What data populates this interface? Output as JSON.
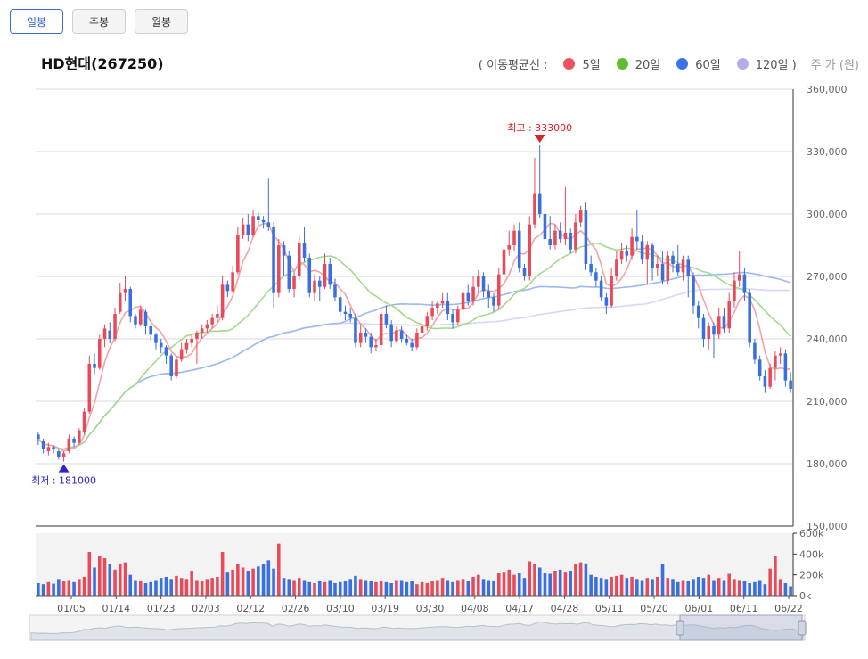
{
  "tabs": [
    {
      "label": "일봉",
      "active": true
    },
    {
      "label": "주봉",
      "active": false
    },
    {
      "label": "월봉",
      "active": false
    }
  ],
  "stock_title": "HD현대(267250)",
  "legend": {
    "prefix": "( 이동평균선 :",
    "items": [
      {
        "label": "5일",
        "color": "#f0525e"
      },
      {
        "label": "20일",
        "color": "#5cc02e"
      },
      {
        "label": "60일",
        "color": "#3b73e6"
      },
      {
        "label": "120일 )",
        "color": "#b3aee8"
      }
    ],
    "unit": "주 가 (원)"
  },
  "colors": {
    "up": "#e84a5a",
    "down": "#3a6fe0",
    "ma5": "#f2a3a8",
    "ma20": "#a3d98a",
    "ma60": "#9bbaf0",
    "ma120": "#d9d6f5",
    "high_marker": "#d22",
    "low_marker": "#2a24c8"
  },
  "chart_data": {
    "type": "candlestick",
    "price_axis": {
      "min": 150000,
      "max": 360000,
      "ticks": [
        "360,000",
        "330,000",
        "300,000",
        "270,000",
        "240,000",
        "210,000",
        "180,000",
        "150,000"
      ]
    },
    "volume_axis": {
      "min": 0,
      "max": 600000,
      "ticks": [
        "600k",
        "400k",
        "200k",
        "0k"
      ]
    },
    "x_ticks": [
      "01/05",
      "01/14",
      "01/23",
      "02/03",
      "02/12",
      "02/26",
      "03/10",
      "03/19",
      "03/30",
      "04/08",
      "04/17",
      "04/28",
      "05/11",
      "05/20",
      "06/01",
      "06/11",
      "06/22"
    ],
    "high_label": "최고 : 333000",
    "low_label": "최저 : 181000",
    "candles": [
      [
        194000,
        192000,
        195000,
        189000,
        120000
      ],
      [
        191000,
        187000,
        192000,
        185000,
        110000
      ],
      [
        186000,
        188000,
        190000,
        184000,
        130000
      ],
      [
        188000,
        187000,
        189000,
        185000,
        115000
      ],
      [
        186000,
        183000,
        187000,
        182000,
        160000
      ],
      [
        183000,
        185000,
        186000,
        181000,
        140000
      ],
      [
        186000,
        192000,
        194000,
        185000,
        150000
      ],
      [
        192000,
        190000,
        193000,
        188000,
        130000
      ],
      [
        190000,
        196000,
        197000,
        189000,
        160000
      ],
      [
        195000,
        205000,
        207000,
        194000,
        180000
      ],
      [
        205000,
        228000,
        232000,
        204000,
        420000
      ],
      [
        228000,
        226000,
        233000,
        223000,
        270000
      ],
      [
        226000,
        240000,
        242000,
        225000,
        380000
      ],
      [
        240000,
        245000,
        247000,
        236000,
        360000
      ],
      [
        244000,
        240000,
        248000,
        238000,
        300000
      ],
      [
        240000,
        252000,
        255000,
        239000,
        250000
      ],
      [
        253000,
        262000,
        267000,
        252000,
        310000
      ],
      [
        262000,
        264000,
        270000,
        258000,
        320000
      ],
      [
        264000,
        251000,
        265000,
        248000,
        200000
      ],
      [
        251000,
        247000,
        252000,
        245000,
        150000
      ],
      [
        247000,
        254000,
        256000,
        246000,
        140000
      ],
      [
        253000,
        246000,
        254000,
        242000,
        120000
      ],
      [
        246000,
        242000,
        247000,
        239000,
        130000
      ],
      [
        242000,
        238000,
        243000,
        235000,
        150000
      ],
      [
        238000,
        236000,
        240000,
        233000,
        170000
      ],
      [
        236000,
        232000,
        237000,
        228000,
        180000
      ],
      [
        232000,
        222000,
        233000,
        220000,
        160000
      ],
      [
        222000,
        230000,
        232000,
        221000,
        190000
      ],
      [
        230000,
        235000,
        238000,
        229000,
        170000
      ],
      [
        235000,
        238000,
        240000,
        233000,
        160000
      ],
      [
        238000,
        240000,
        242000,
        236000,
        240000
      ],
      [
        240000,
        243000,
        244000,
        228000,
        150000
      ],
      [
        243000,
        245000,
        247000,
        240000,
        140000
      ],
      [
        245000,
        247000,
        249000,
        243000,
        160000
      ],
      [
        247000,
        250000,
        252000,
        245000,
        170000
      ],
      [
        250000,
        252000,
        256000,
        248000,
        180000
      ],
      [
        250000,
        266000,
        270000,
        249000,
        420000
      ],
      [
        266000,
        263000,
        268000,
        260000,
        230000
      ],
      [
        263000,
        272000,
        275000,
        262000,
        250000
      ],
      [
        272000,
        290000,
        294000,
        271000,
        300000
      ],
      [
        290000,
        295000,
        298000,
        288000,
        270000
      ],
      [
        295000,
        290000,
        300000,
        287000,
        240000
      ],
      [
        290000,
        299000,
        302000,
        289000,
        260000
      ],
      [
        299000,
        297000,
        301000,
        295000,
        280000
      ],
      [
        297000,
        296000,
        299000,
        293000,
        300000
      ],
      [
        296000,
        294000,
        317000,
        292000,
        340000
      ],
      [
        294000,
        262000,
        296000,
        255000,
        260000
      ],
      [
        262000,
        285000,
        288000,
        260000,
        500000
      ],
      [
        285000,
        280000,
        287000,
        270000,
        170000
      ],
      [
        280000,
        264000,
        282000,
        262000,
        160000
      ],
      [
        264000,
        270000,
        272000,
        260000,
        150000
      ],
      [
        270000,
        286000,
        290000,
        268000,
        170000
      ],
      [
        286000,
        279000,
        294000,
        277000,
        150000
      ],
      [
        279000,
        262000,
        281000,
        260000,
        130000
      ],
      [
        262000,
        268000,
        271000,
        258000,
        120000
      ],
      [
        268000,
        265000,
        270000,
        258000,
        140000
      ],
      [
        265000,
        276000,
        281000,
        264000,
        130000
      ],
      [
        276000,
        266000,
        279000,
        264000,
        150000
      ],
      [
        266000,
        260000,
        269000,
        258000,
        120000
      ],
      [
        260000,
        253000,
        262000,
        251000,
        130000
      ],
      [
        253000,
        252000,
        256000,
        249000,
        140000
      ],
      [
        252000,
        250000,
        255000,
        248000,
        160000
      ],
      [
        250000,
        238000,
        252000,
        236000,
        190000
      ],
      [
        238000,
        243000,
        247000,
        236000,
        160000
      ],
      [
        243000,
        241000,
        245000,
        238000,
        150000
      ],
      [
        241000,
        236000,
        243000,
        233000,
        140000
      ],
      [
        236000,
        237000,
        240000,
        234000,
        130000
      ],
      [
        237000,
        252000,
        254000,
        235000,
        140000
      ],
      [
        252000,
        247000,
        256000,
        245000,
        130000
      ],
      [
        247000,
        239000,
        249000,
        236000,
        120000
      ],
      [
        239000,
        244000,
        246000,
        238000,
        150000
      ],
      [
        244000,
        240000,
        246000,
        238000,
        150000
      ],
      [
        240000,
        238000,
        242000,
        237000,
        130000
      ],
      [
        238000,
        236000,
        240000,
        234000,
        140000
      ],
      [
        236000,
        243000,
        245000,
        235000,
        110000
      ],
      [
        243000,
        246000,
        248000,
        241000,
        130000
      ],
      [
        246000,
        251000,
        253000,
        244000,
        120000
      ],
      [
        251000,
        255000,
        258000,
        249000,
        140000
      ],
      [
        255000,
        257000,
        258000,
        252000,
        150000
      ],
      [
        257000,
        258000,
        262000,
        255000,
        170000
      ],
      [
        258000,
        252000,
        262000,
        249000,
        150000
      ],
      [
        252000,
        248000,
        254000,
        245000,
        130000
      ],
      [
        248000,
        254000,
        256000,
        247000,
        150000
      ],
      [
        254000,
        262000,
        265000,
        251000,
        160000
      ],
      [
        262000,
        258000,
        266000,
        256000,
        140000
      ],
      [
        258000,
        265000,
        270000,
        256000,
        180000
      ],
      [
        265000,
        270000,
        273000,
        262000,
        200000
      ],
      [
        270000,
        263000,
        272000,
        260000,
        160000
      ],
      [
        263000,
        260000,
        266000,
        255000,
        150000
      ],
      [
        260000,
        256000,
        262000,
        253000,
        140000
      ],
      [
        256000,
        271000,
        274000,
        254000,
        220000
      ],
      [
        271000,
        283000,
        287000,
        269000,
        230000
      ],
      [
        283000,
        285000,
        292000,
        280000,
        250000
      ],
      [
        285000,
        292000,
        295000,
        282000,
        200000
      ],
      [
        292000,
        274000,
        296000,
        272000,
        220000
      ],
      [
        274000,
        270000,
        276000,
        268000,
        170000
      ],
      [
        270000,
        295000,
        299000,
        268000,
        330000
      ],
      [
        295000,
        310000,
        327000,
        293000,
        300000
      ],
      [
        310000,
        300000,
        333000,
        298000,
        270000
      ],
      [
        300000,
        288000,
        303000,
        285000,
        220000
      ],
      [
        288000,
        285000,
        299000,
        283000,
        210000
      ],
      [
        285000,
        292000,
        295000,
        283000,
        240000
      ],
      [
        292000,
        288000,
        296000,
        286000,
        250000
      ],
      [
        288000,
        291000,
        313000,
        285000,
        230000
      ],
      [
        291000,
        283000,
        293000,
        281000,
        240000
      ],
      [
        283000,
        296000,
        300000,
        281000,
        300000
      ],
      [
        296000,
        302000,
        304000,
        294000,
        320000
      ],
      [
        302000,
        276000,
        306000,
        273000,
        310000
      ],
      [
        276000,
        272000,
        280000,
        270000,
        200000
      ],
      [
        272000,
        268000,
        274000,
        265000,
        180000
      ],
      [
        268000,
        260000,
        270000,
        258000,
        170000
      ],
      [
        260000,
        256000,
        262000,
        252000,
        160000
      ],
      [
        256000,
        270000,
        274000,
        255000,
        180000
      ],
      [
        270000,
        278000,
        282000,
        268000,
        190000
      ],
      [
        278000,
        282000,
        286000,
        276000,
        200000
      ],
      [
        282000,
        280000,
        285000,
        277000,
        170000
      ],
      [
        280000,
        289000,
        293000,
        278000,
        180000
      ],
      [
        289000,
        287000,
        302000,
        283000,
        160000
      ],
      [
        287000,
        278000,
        290000,
        276000,
        150000
      ],
      [
        278000,
        285000,
        287000,
        266000,
        170000
      ],
      [
        285000,
        274000,
        286000,
        268000,
        160000
      ],
      [
        274000,
        276000,
        280000,
        270000,
        180000
      ],
      [
        276000,
        268000,
        282000,
        266000,
        300000
      ],
      [
        268000,
        280000,
        282000,
        266000,
        170000
      ],
      [
        280000,
        276000,
        282000,
        272000,
        160000
      ],
      [
        276000,
        272000,
        285000,
        270000,
        130000
      ],
      [
        272000,
        278000,
        280000,
        268000,
        150000
      ],
      [
        278000,
        270000,
        280000,
        260000,
        140000
      ],
      [
        270000,
        256000,
        272000,
        252000,
        160000
      ],
      [
        256000,
        250000,
        258000,
        245000,
        180000
      ],
      [
        250000,
        240000,
        252000,
        236000,
        170000
      ],
      [
        240000,
        246000,
        248000,
        235000,
        200000
      ],
      [
        246000,
        242000,
        248000,
        231000,
        150000
      ],
      [
        242000,
        251000,
        255000,
        240000,
        170000
      ],
      [
        251000,
        245000,
        255000,
        243000,
        150000
      ],
      [
        245000,
        258000,
        262000,
        243000,
        210000
      ],
      [
        258000,
        268000,
        272000,
        255000,
        160000
      ],
      [
        268000,
        271000,
        282000,
        265000,
        150000
      ],
      [
        271000,
        262000,
        274000,
        258000,
        140000
      ],
      [
        262000,
        238000,
        264000,
        236000,
        120000
      ],
      [
        238000,
        230000,
        240000,
        228000,
        130000
      ],
      [
        230000,
        222000,
        232000,
        220000,
        150000
      ],
      [
        222000,
        217000,
        225000,
        214000,
        110000
      ],
      [
        217000,
        226000,
        228000,
        216000,
        260000
      ],
      [
        226000,
        232000,
        234000,
        220000,
        380000
      ],
      [
        232000,
        233000,
        236000,
        228000,
        160000
      ],
      [
        233000,
        220000,
        235000,
        217000,
        120000
      ],
      [
        220000,
        216000,
        224000,
        214000,
        90000
      ]
    ]
  }
}
